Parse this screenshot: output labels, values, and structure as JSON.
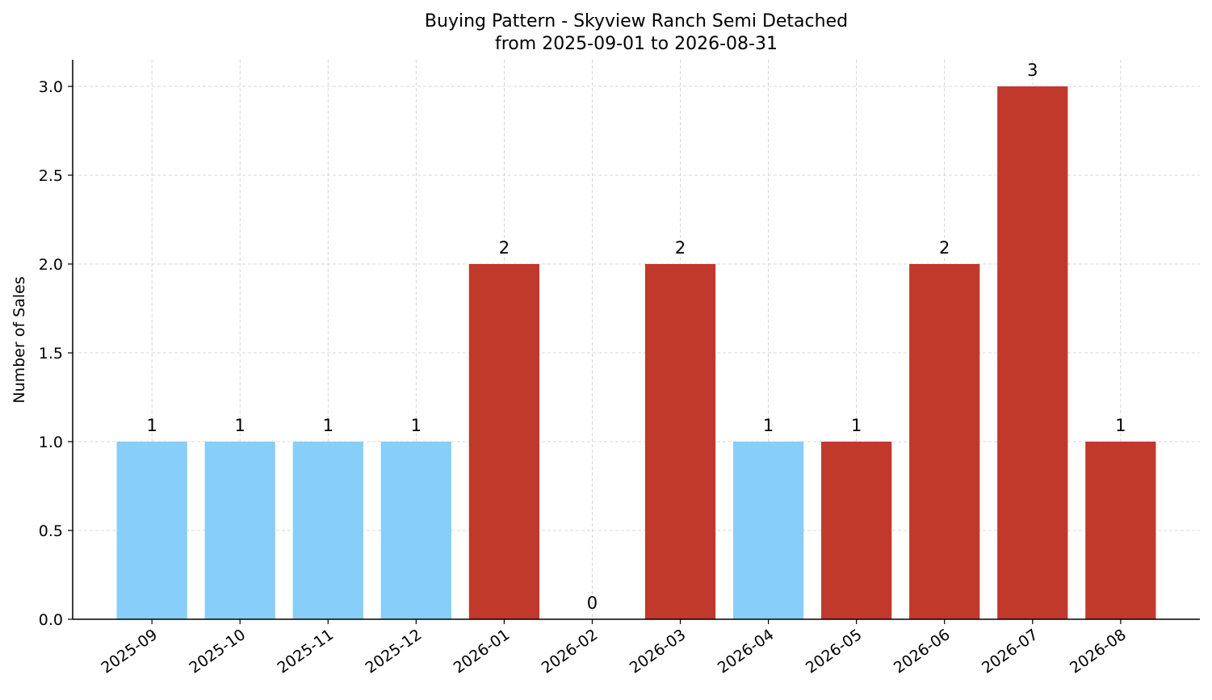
{
  "chart_data": {
    "type": "bar",
    "title_line1": "Buying Pattern - Skyview Ranch Semi Detached",
    "title_line2": "from 2025-09-01 to 2026-08-31",
    "xlabel": "",
    "ylabel": "Number of Sales",
    "categories": [
      "2025-09",
      "2025-10",
      "2025-11",
      "2025-12",
      "2026-01",
      "2026-02",
      "2026-03",
      "2026-04",
      "2026-05",
      "2026-06",
      "2026-07",
      "2026-08"
    ],
    "values": [
      1,
      1,
      1,
      1,
      2,
      0,
      2,
      1,
      1,
      2,
      3,
      1
    ],
    "bar_colors": [
      "#87CEFA",
      "#87CEFA",
      "#87CEFA",
      "#87CEFA",
      "#C0392B",
      "#C0392B",
      "#C0392B",
      "#87CEFA",
      "#C0392B",
      "#C0392B",
      "#C0392B",
      "#C0392B"
    ],
    "ylim": [
      0,
      3.15
    ],
    "yticks": [
      "0.0",
      "0.5",
      "1.0",
      "1.5",
      "2.0",
      "2.5",
      "3.0"
    ],
    "grid": true,
    "legend": "none"
  }
}
